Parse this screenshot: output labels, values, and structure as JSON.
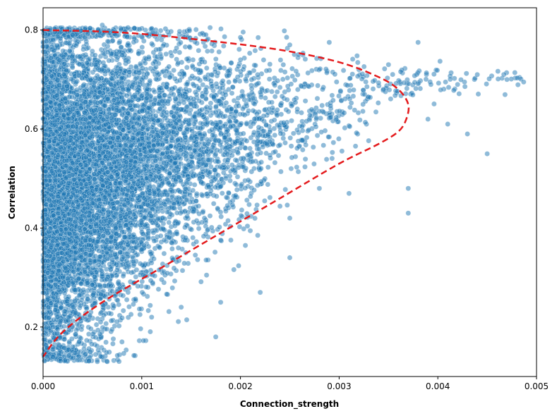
{
  "chart_data": {
    "type": "scatter",
    "title": "",
    "xlabel": "Connection_strength",
    "ylabel": "Correlation",
    "xlim": [
      0,
      0.005
    ],
    "ylim": [
      0.1,
      0.845
    ],
    "x_ticks": [
      0,
      0.001,
      0.002,
      0.003,
      0.004,
      0.005
    ],
    "x_tick_labels": [
      "0.000",
      "0.001",
      "0.002",
      "0.003",
      "0.004",
      "0.005"
    ],
    "y_ticks": [
      0.2,
      0.4,
      0.6,
      0.8
    ],
    "y_tick_labels": [
      "0.2",
      "0.4",
      "0.6",
      "0.8"
    ],
    "grid": false,
    "legend": "none",
    "scatter_color": "#1f77b4",
    "scatter_alpha": 0.5,
    "boundary_color": "#e41a1c",
    "n_points": 9000,
    "series": [
      {
        "type": "scatter",
        "style": "dense cloud, upper-left triangular",
        "sample_points": [
          [
            0.0001,
            0.78
          ],
          [
            0.0003,
            0.79
          ],
          [
            0.0006,
            0.81
          ],
          [
            0.0012,
            0.78
          ],
          [
            0.0015,
            0.78
          ],
          [
            0.002,
            0.785
          ],
          [
            0.0025,
            0.77
          ],
          [
            0.0029,
            0.775
          ],
          [
            0.0032,
            0.72
          ],
          [
            0.0035,
            0.73
          ],
          [
            0.0038,
            0.775
          ],
          [
            0.0042,
            0.69
          ],
          [
            0.0044,
            0.71
          ],
          [
            0.0047,
            0.7
          ],
          [
            0.00487,
            0.695
          ],
          [
            0.0045,
            0.55
          ],
          [
            0.0043,
            0.59
          ],
          [
            0.0041,
            0.61
          ],
          [
            0.0039,
            0.62
          ],
          [
            0.0037,
            0.48
          ],
          [
            0.0037,
            0.43
          ],
          [
            0.0031,
            0.47
          ],
          [
            0.0028,
            0.48
          ],
          [
            0.0025,
            0.42
          ],
          [
            0.0025,
            0.34
          ],
          [
            0.0022,
            0.27
          ],
          [
            0.0018,
            0.25
          ],
          [
            0.00175,
            0.18
          ],
          [
            0.0014,
            0.24
          ],
          [
            0.0011,
            0.22
          ],
          [
            0.0008,
            0.17
          ],
          [
            0.00065,
            0.13
          ],
          [
            0.00055,
            0.13
          ],
          [
            0.0003,
            0.16
          ],
          [
            0.0001,
            0.14
          ],
          [
            0.0001,
            0.2
          ],
          [
            0.0002,
            0.3
          ],
          [
            0.0005,
            0.45
          ],
          [
            0.0008,
            0.55
          ],
          [
            0.0015,
            0.65
          ]
        ]
      },
      {
        "type": "line",
        "style": "dashed",
        "description": "boundary",
        "x": [
          0.0,
          0.0008,
          0.0016,
          0.0024,
          0.003,
          0.0034,
          0.0036,
          0.0037,
          0.00368,
          0.0036,
          0.0034,
          0.003,
          0.0024,
          0.0018,
          0.0012,
          0.0006,
          0.0002,
          0.0
        ],
        "y": [
          0.8,
          0.795,
          0.78,
          0.76,
          0.735,
          0.705,
          0.68,
          0.65,
          0.62,
          0.595,
          0.57,
          0.53,
          0.46,
          0.39,
          0.32,
          0.25,
          0.19,
          0.14
        ]
      }
    ]
  }
}
